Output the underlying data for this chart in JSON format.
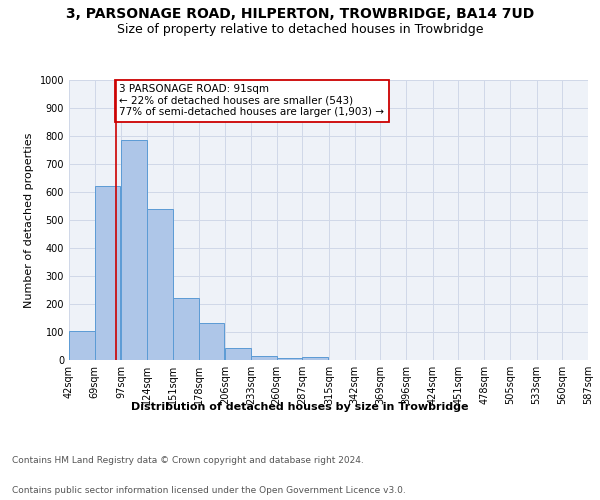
{
  "title_line1": "3, PARSONAGE ROAD, HILPERTON, TROWBRIDGE, BA14 7UD",
  "title_line2": "Size of property relative to detached houses in Trowbridge",
  "xlabel": "Distribution of detached houses by size in Trowbridge",
  "ylabel": "Number of detached properties",
  "bar_values": [
    103,
    622,
    787,
    538,
    220,
    132,
    42,
    16,
    8,
    12,
    0,
    0,
    0,
    0,
    0,
    0,
    0,
    0,
    0,
    0
  ],
  "bin_edges": [
    42,
    69,
    97,
    124,
    151,
    178,
    206,
    233,
    260,
    287,
    315,
    342,
    369,
    396,
    424,
    451,
    478,
    505,
    533,
    560,
    587
  ],
  "x_tick_labels": [
    "42sqm",
    "69sqm",
    "97sqm",
    "124sqm",
    "151sqm",
    "178sqm",
    "206sqm",
    "233sqm",
    "260sqm",
    "287sqm",
    "315sqm",
    "342sqm",
    "369sqm",
    "396sqm",
    "424sqm",
    "451sqm",
    "478sqm",
    "505sqm",
    "533sqm",
    "560sqm",
    "587sqm"
  ],
  "bar_color": "#aec6e8",
  "bar_edge_color": "#5b9bd5",
  "vline_x": 91,
  "vline_color": "#cc0000",
  "annotation_text": "3 PARSONAGE ROAD: 91sqm\n← 22% of detached houses are smaller (543)\n77% of semi-detached houses are larger (1,903) →",
  "annotation_box_color": "#ffffff",
  "annotation_box_edge": "#cc0000",
  "ylim": [
    0,
    1000
  ],
  "yticks": [
    0,
    100,
    200,
    300,
    400,
    500,
    600,
    700,
    800,
    900,
    1000
  ],
  "grid_color": "#d0d8e8",
  "background_color": "#eef2f8",
  "footer_line1": "Contains HM Land Registry data © Crown copyright and database right 2024.",
  "footer_line2": "Contains public sector information licensed under the Open Government Licence v3.0.",
  "title_fontsize": 10,
  "subtitle_fontsize": 9,
  "axis_label_fontsize": 8,
  "tick_fontsize": 7,
  "annotation_fontsize": 7.5,
  "footer_fontsize": 6.5
}
